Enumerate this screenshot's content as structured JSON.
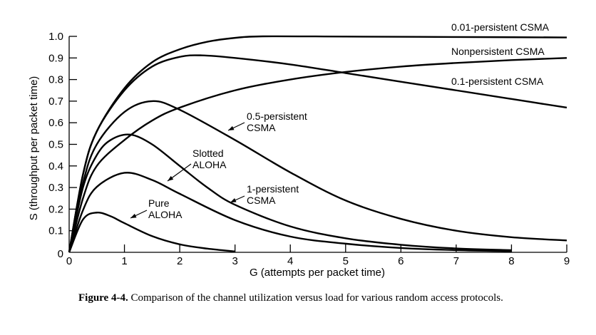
{
  "chart_data": {
    "type": "line",
    "title": "",
    "xlabel": "G (attempts per packet time)",
    "ylabel": "S (throughput per packet time)",
    "xlim": [
      0,
      9
    ],
    "ylim": [
      0,
      1.0
    ],
    "xticks": [
      "0",
      "1",
      "2",
      "3",
      "4",
      "5",
      "6",
      "7",
      "8",
      "9"
    ],
    "yticks": [
      "0",
      "0.1",
      "0.2",
      "0.3",
      "0.4",
      "0.5",
      "0.6",
      "0.7",
      "0.8",
      "0.9",
      "1.0"
    ],
    "grid": false,
    "series": [
      {
        "name": "Pure ALOHA",
        "label_lines": [
          "Pure",
          "ALOHA"
        ],
        "points": [
          [
            0,
            0
          ],
          [
            0.25,
            0.152
          ],
          [
            0.5,
            0.184
          ],
          [
            0.75,
            0.167
          ],
          [
            1,
            0.135
          ],
          [
            1.5,
            0.075
          ],
          [
            2,
            0.037
          ],
          [
            2.5,
            0.017
          ],
          [
            3,
            0.004
          ]
        ]
      },
      {
        "name": "Slotted ALOHA",
        "label_lines": [
          "Slotted",
          "ALOHA"
        ],
        "points": [
          [
            0,
            0
          ],
          [
            0.25,
            0.195
          ],
          [
            0.5,
            0.303
          ],
          [
            1,
            0.368
          ],
          [
            1.5,
            0.335
          ],
          [
            2,
            0.271
          ],
          [
            3,
            0.149
          ],
          [
            4,
            0.073
          ],
          [
            5,
            0.04
          ],
          [
            6,
            0.02
          ],
          [
            7,
            0.01
          ],
          [
            8,
            0.005
          ]
        ]
      },
      {
        "name": "1-persistent CSMA",
        "label_lines": [
          "1-persistent",
          "CSMA"
        ],
        "points": [
          [
            0,
            0
          ],
          [
            0.25,
            0.3
          ],
          [
            0.5,
            0.45
          ],
          [
            0.75,
            0.52
          ],
          [
            1.1,
            0.545
          ],
          [
            1.5,
            0.5
          ],
          [
            2,
            0.4
          ],
          [
            2.5,
            0.3
          ],
          [
            3,
            0.22
          ],
          [
            4,
            0.12
          ],
          [
            5,
            0.065
          ],
          [
            6,
            0.035
          ],
          [
            7,
            0.018
          ],
          [
            8,
            0.01
          ]
        ]
      },
      {
        "name": "0.5-persistent CSMA",
        "label_lines": [
          "0.5-persistent",
          "CSMA"
        ],
        "points": [
          [
            0,
            0
          ],
          [
            0.25,
            0.32
          ],
          [
            0.5,
            0.5
          ],
          [
            1,
            0.65
          ],
          [
            1.5,
            0.7
          ],
          [
            2,
            0.66
          ],
          [
            3,
            0.52
          ],
          [
            4,
            0.37
          ],
          [
            5,
            0.24
          ],
          [
            6,
            0.155
          ],
          [
            7,
            0.1
          ],
          [
            8,
            0.07
          ],
          [
            9,
            0.055
          ]
        ]
      },
      {
        "name": "Nonpersistent CSMA",
        "label_lines": [
          "Nonpersistent CSMA"
        ],
        "points": [
          [
            0,
            0
          ],
          [
            0.25,
            0.25
          ],
          [
            0.5,
            0.4
          ],
          [
            1,
            0.52
          ],
          [
            1.5,
            0.61
          ],
          [
            2,
            0.67
          ],
          [
            3,
            0.75
          ],
          [
            4,
            0.8
          ],
          [
            5,
            0.835
          ],
          [
            6,
            0.86
          ],
          [
            7,
            0.877
          ],
          [
            8,
            0.89
          ],
          [
            9,
            0.9
          ]
        ]
      },
      {
        "name": "0.1-persistent CSMA",
        "label_lines": [
          "0.1-persistent CSMA"
        ],
        "points": [
          [
            0,
            0
          ],
          [
            0.25,
            0.36
          ],
          [
            0.5,
            0.56
          ],
          [
            1,
            0.75
          ],
          [
            1.5,
            0.86
          ],
          [
            2,
            0.905
          ],
          [
            2.4,
            0.912
          ],
          [
            3,
            0.9
          ],
          [
            4,
            0.87
          ],
          [
            5,
            0.83
          ],
          [
            6,
            0.79
          ],
          [
            7,
            0.75
          ],
          [
            8,
            0.71
          ],
          [
            9,
            0.67
          ]
        ]
      },
      {
        "name": "0.01-persistent CSMA",
        "label_lines": [
          "0.01-persistent CSMA"
        ],
        "points": [
          [
            0,
            0
          ],
          [
            0.25,
            0.36
          ],
          [
            0.5,
            0.56
          ],
          [
            1,
            0.76
          ],
          [
            1.5,
            0.88
          ],
          [
            2,
            0.94
          ],
          [
            2.5,
            0.975
          ],
          [
            3,
            0.993
          ],
          [
            3.5,
            1.0
          ],
          [
            5,
            0.999
          ],
          [
            7,
            0.997
          ],
          [
            9,
            0.995
          ]
        ]
      }
    ]
  },
  "caption": {
    "figure": "Figure 4-4.",
    "text": "Comparison of the channel utilization versus load for various random access protocols."
  }
}
